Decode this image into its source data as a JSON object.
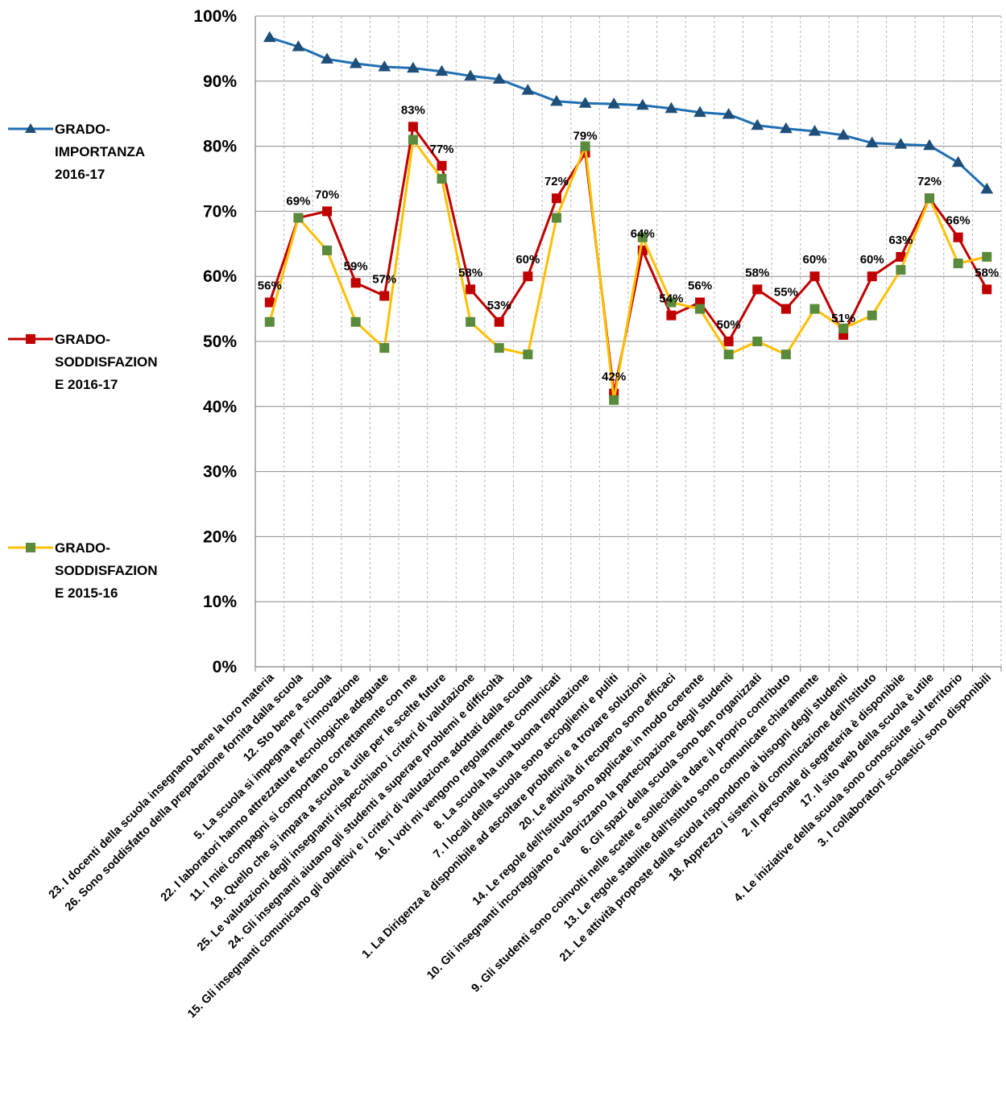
{
  "chart_data": {
    "type": "line",
    "title": "",
    "xlabel": "",
    "ylabel": "",
    "ylim": [
      0,
      100
    ],
    "yticks": [
      "0%",
      "10%",
      "20%",
      "30%",
      "40%",
      "50%",
      "60%",
      "70%",
      "80%",
      "90%",
      "100%"
    ],
    "grid": "horizontal major, vertical dashed",
    "legend_position": "left",
    "categories": [
      "23. I docenti della scuola insegnano bene la loro materia",
      "26. Sono soddisfatto della preparazione fornita dalla scuola",
      "12. Sto bene a scuola",
      "5. La scuola si impegna per l'innovazione",
      "22. I laboratori hanno attrezzature tecnologiche adeguate",
      "11. I miei compagni si comportano correttamente con me",
      "19. Quello che si impara a scuola è utile per le scelte future",
      "25. Le valutazioni degli insegnanti rispecchiano i criteri di valutazione",
      "24. Gli insegnanti aiutano gli studenti a superare problemi e difficoltà",
      "15. Gli insegnanti comunicano gli obiettivi e i criteri di valutazione adottati dalla scuola",
      "16. I voti mi vengono regolarmente comunicati",
      "8. La scuola ha una buona reputazione",
      "7. I locali della scuola sono accoglienti e puliti",
      "1. La Dirigenza è disponibile ad ascoltare problemi e a trovare soluzioni",
      "20. Le attività di recupero sono efficaci",
      "14. Le regole dell'Istituto sono applicate in modo coerente",
      "10. Gli insegnanti incoraggiano e valorizzano la partecipazione degli studenti",
      "6. Gli spazi della scuola sono ben organizzati",
      "9. Gli studenti sono coinvolti nelle scelte e sollecitati a dare il proprio contributo",
      "13. Le regole stabilite dall'Istituto sono comunicate chiaramente",
      "21. Le attività proposte dalla scuola rispondono ai bisogni degli studenti",
      "18. Apprezzo i sistemi di comunicazione dell'Istituto",
      "2. Il personale di segreteria è disponibile",
      "17. Il sito web della scuola è utile",
      "4. Le iniziative della scuola sono conosciute sul territorio",
      "3. I collaboratori scolastici sono disponibili"
    ],
    "series": [
      {
        "name": "GRADO-IMPORTANZA 2016-17",
        "legend_lines": [
          "GRADO-",
          "IMPORTANZA",
          "2016-17"
        ],
        "color": "#1f6fb3",
        "marker": "triangle",
        "values": [
          96.7,
          95.3,
          93.4,
          92.7,
          92.2,
          92.0,
          91.5,
          90.8,
          90.3,
          88.6,
          86.9,
          86.6,
          86.5,
          86.3,
          85.8,
          85.2,
          84.9,
          83.2,
          82.7,
          82.3,
          81.7,
          80.5,
          80.3,
          80.1,
          77.5,
          73.4
        ]
      },
      {
        "name": "GRADO-SODDISFAZIONE 2016-17",
        "legend_lines": [
          "GRADO-",
          "SODDISFAZION",
          "E 2016-17"
        ],
        "color": "#c00000",
        "marker": "square",
        "values": [
          56,
          69,
          70,
          59,
          57,
          83,
          77,
          58,
          53,
          60,
          72,
          79,
          42,
          64,
          54,
          56,
          50,
          58,
          55,
          60,
          51,
          60,
          63,
          72,
          66,
          58
        ],
        "data_labels": [
          "56%",
          "69%",
          "70%",
          "59%",
          "57%",
          "83%",
          "77%",
          "58%",
          "53%",
          "60%",
          "72%",
          "79%",
          "42%",
          "64%",
          "54%",
          "56%",
          "50%",
          "58%",
          "55%",
          "60%",
          "51%",
          "60%",
          "63%",
          "72%",
          "66%",
          "58%"
        ]
      },
      {
        "name": "GRADO-SODDISFAZIONE 2015-16",
        "legend_lines": [
          "GRADO-",
          "SODDISFAZION",
          "E 2015-16"
        ],
        "color": "#ffc000",
        "marker_color": "#5a8a3c",
        "marker": "square",
        "values": [
          53,
          69,
          64,
          53,
          49,
          81,
          75,
          53,
          49,
          48,
          69,
          80,
          41,
          66,
          56,
          55,
          48,
          50,
          48,
          55,
          52,
          54,
          61,
          72,
          62,
          63
        ]
      }
    ]
  }
}
